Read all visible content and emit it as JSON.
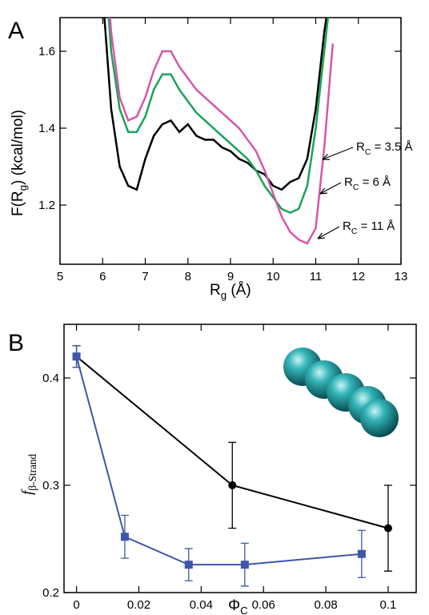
{
  "chart_data": [
    {
      "type": "line",
      "panel": "A",
      "xlabel": {
        "main": "R",
        "sub": "g",
        "suffix": " (Å)"
      },
      "ylabel": {
        "main": "F(R",
        "sub": "g",
        "suffix": ") (kcal/mol)"
      },
      "x": [
        6.0,
        6.2,
        6.4,
        6.6,
        6.8,
        7.0,
        7.2,
        7.4,
        7.6,
        7.8,
        8.0,
        8.2,
        8.4,
        8.6,
        8.8,
        9.0,
        9.2,
        9.4,
        9.6,
        9.8,
        10.0,
        10.2,
        10.4,
        10.6,
        10.8,
        11.0,
        11.2,
        11.4
      ],
      "series": [
        {
          "name": {
            "main": "R",
            "sub": "C",
            "suffix": " = 3.5 Å"
          },
          "color": "#000000",
          "values": [
            1.75,
            1.45,
            1.3,
            1.25,
            1.24,
            1.32,
            1.38,
            1.41,
            1.42,
            1.39,
            1.41,
            1.38,
            1.37,
            1.37,
            1.35,
            1.34,
            1.32,
            1.31,
            1.29,
            1.28,
            1.25,
            1.24,
            1.26,
            1.27,
            1.32,
            1.45,
            1.65,
            1.8
          ]
        },
        {
          "name": {
            "main": "R",
            "sub": "C",
            "suffix": " = 6 Å"
          },
          "color": "#1aa35a",
          "values": [
            1.9,
            1.6,
            1.45,
            1.39,
            1.39,
            1.43,
            1.5,
            1.54,
            1.54,
            1.5,
            1.47,
            1.44,
            1.42,
            1.4,
            1.38,
            1.36,
            1.34,
            1.32,
            1.29,
            1.25,
            1.22,
            1.19,
            1.18,
            1.19,
            1.25,
            1.4,
            1.6,
            1.8
          ]
        },
        {
          "name": {
            "main": "R",
            "sub": "C",
            "suffix": " = 11 Å"
          },
          "color": "#d657a8",
          "values": [
            1.95,
            1.65,
            1.48,
            1.42,
            1.43,
            1.48,
            1.55,
            1.6,
            1.6,
            1.56,
            1.53,
            1.5,
            1.48,
            1.46,
            1.44,
            1.42,
            1.4,
            1.37,
            1.34,
            1.29,
            1.23,
            1.17,
            1.13,
            1.11,
            1.1,
            1.14,
            1.35,
            1.62
          ]
        }
      ],
      "xlim": [
        5,
        13
      ],
      "xticks": [
        5,
        6,
        7,
        8,
        9,
        10,
        11,
        12,
        13
      ],
      "ylim": [
        1.046,
        1.6875
      ],
      "yticks": [
        1.2,
        1.4,
        1.6
      ]
    },
    {
      "type": "errorbar",
      "panel": "B",
      "xlabel": {
        "main": "Φ",
        "sub": "C"
      },
      "ylabel": {
        "main": "f",
        "sub": "β-Strand"
      },
      "series": [
        {
          "color": "#000000",
          "marker": "circle",
          "x": [
            0,
            0.05,
            0.1
          ],
          "values": [
            0.42,
            0.3,
            0.26
          ],
          "errors": [
            0.01,
            0.04,
            0.04
          ]
        },
        {
          "color": "#3f56a8",
          "marker": "square",
          "x": [
            0,
            0.0155,
            0.036,
            0.054,
            0.0915
          ],
          "values": [
            0.42,
            0.252,
            0.226,
            0.226,
            0.236
          ],
          "errors": [
            0.01,
            0.02,
            0.015,
            0.02,
            0.022
          ]
        }
      ],
      "xlim": [
        -0.004,
        0.109
      ],
      "xticks": [
        0,
        0.02,
        0.04,
        0.06,
        0.08,
        0.1
      ],
      "ylim": [
        0.2,
        0.45
      ],
      "yticks": [
        0.2,
        0.3,
        0.4
      ]
    }
  ]
}
